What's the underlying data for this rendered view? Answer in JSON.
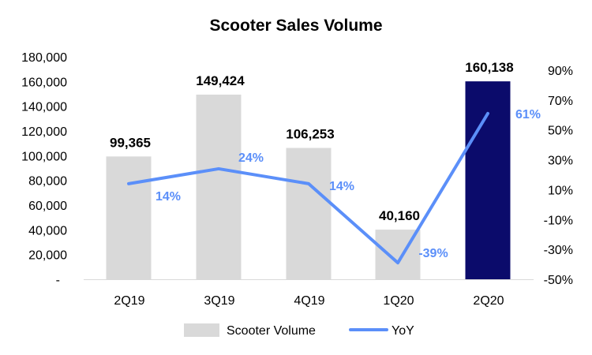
{
  "chart_data": {
    "type": "bar",
    "title": "Scooter Sales Volume",
    "categories": [
      "2Q19",
      "3Q19",
      "4Q19",
      "1Q20",
      "2Q20"
    ],
    "series": [
      {
        "name": "Scooter Volume",
        "type": "bar",
        "axis": "left",
        "values": [
          99365,
          149424,
          106253,
          40160,
          160138
        ],
        "labels": [
          "99,365",
          "149,424",
          "106,253",
          "40,160",
          "160,138"
        ],
        "color": "#D9D9D9",
        "highlight_color": "#0B0B6B",
        "highlight_index": 4
      },
      {
        "name": "YoY",
        "type": "line",
        "axis": "right",
        "values": [
          14,
          24,
          14,
          -39,
          61
        ],
        "labels": [
          "14%",
          "24%",
          "14%",
          "-39%",
          "61%"
        ],
        "color": "#5B8FF9"
      }
    ],
    "y_left": {
      "range": [
        0,
        180000
      ],
      "ticks": [
        "-",
        "20,000",
        "40,000",
        "60,000",
        "80,000",
        "100,000",
        "120,000",
        "140,000",
        "160,000",
        "180,000"
      ]
    },
    "y_right": {
      "range": [
        -50,
        90
      ],
      "ticks": [
        "-50%",
        "-30%",
        "-10%",
        "10%",
        "30%",
        "50%",
        "70%",
        "90%"
      ]
    },
    "grid": false,
    "legend": "bottom"
  }
}
